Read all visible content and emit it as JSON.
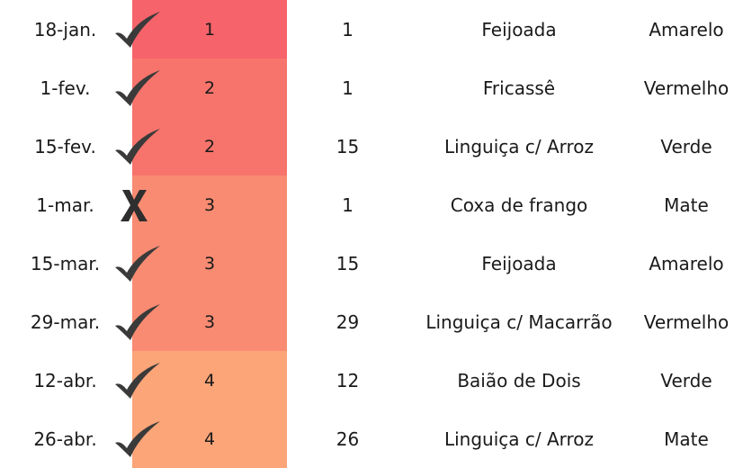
{
  "rows": [
    {
      "date": "18-jan.",
      "status": "check",
      "week": "1",
      "day": "1",
      "dish": "Feijoada",
      "color": "Amarelo",
      "shade": "#f7636a"
    },
    {
      "date": "1-fev.",
      "status": "check",
      "week": "2",
      "day": "1",
      "dish": "Fricassê",
      "color": "Vermelho",
      "shade": "#f6746c"
    },
    {
      "date": "15-fev.",
      "status": "check",
      "week": "2",
      "day": "15",
      "dish": "Linguiça c/ Arroz",
      "color": "Verde",
      "shade": "#f6746c"
    },
    {
      "date": "1-mar.",
      "status": "cross",
      "week": "3",
      "day": "1",
      "dish": "Coxa de frango",
      "color": "Mate",
      "shade": "#f98b72"
    },
    {
      "date": "15-mar.",
      "status": "check",
      "week": "3",
      "day": "15",
      "dish": "Feijoada",
      "color": "Amarelo",
      "shade": "#f98b72"
    },
    {
      "date": "29-mar.",
      "status": "check",
      "week": "3",
      "day": "29",
      "dish": "Linguiça c/ Macarrão",
      "color": "Vermelho",
      "shade": "#f98b72"
    },
    {
      "date": "12-abr.",
      "status": "check",
      "week": "4",
      "day": "12",
      "dish": "Baião de Dois",
      "color": "Verde",
      "shade": "#fba578"
    },
    {
      "date": "26-abr.",
      "status": "check",
      "week": "4",
      "day": "26",
      "dish": "Linguiça c/ Arroz",
      "color": "Mate",
      "shade": "#fba578"
    }
  ],
  "icons": {
    "check": "checkmark-icon",
    "cross": "x-mark-icon"
  }
}
